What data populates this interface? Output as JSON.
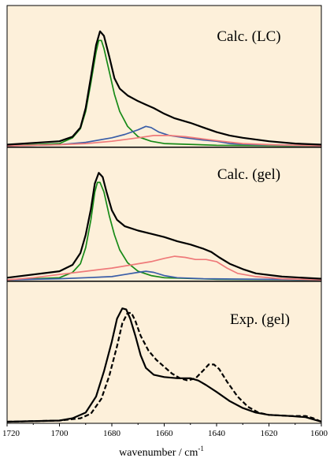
{
  "chart_data": {
    "type": "line",
    "x_axis": {
      "label": "wavenumber / cm",
      "label_superscript": "-1",
      "range": [
        1720,
        1600
      ],
      "ticks": [
        "1720",
        "1700",
        "1680",
        "1660",
        "1640",
        "1620",
        "1600"
      ]
    },
    "colors": {
      "background": "#fdf0da",
      "total": "#000000",
      "green": "#178a17",
      "blue": "#3a5ea8",
      "red": "#ef7a7a"
    },
    "panels": [
      {
        "title": "Calc. (LC)",
        "y_range": [
          0,
          1.06
        ],
        "series": [
          {
            "color_key": "total",
            "dashed": false,
            "points": [
              [
                1720,
                0.01
              ],
              [
                1700,
                0.04
              ],
              [
                1695,
                0.08
              ],
              [
                1692,
                0.16
              ],
              [
                1690,
                0.33
              ],
              [
                1688,
                0.6
              ],
              [
                1686,
                0.88
              ],
              [
                1684.5,
                1.0
              ],
              [
                1683,
                0.96
              ],
              [
                1681,
                0.78
              ],
              [
                1679,
                0.59
              ],
              [
                1677,
                0.5
              ],
              [
                1674,
                0.44
              ],
              [
                1670,
                0.39
              ],
              [
                1667,
                0.36
              ],
              [
                1664,
                0.33
              ],
              [
                1660,
                0.28
              ],
              [
                1656,
                0.24
              ],
              [
                1650,
                0.2
              ],
              [
                1645,
                0.16
              ],
              [
                1640,
                0.12
              ],
              [
                1635,
                0.09
              ],
              [
                1630,
                0.07
              ],
              [
                1620,
                0.04
              ],
              [
                1610,
                0.02
              ],
              [
                1600,
                0.01
              ]
            ]
          },
          {
            "color_key": "green",
            "dashed": false,
            "points": [
              [
                1720,
                0.0
              ],
              [
                1700,
                0.02
              ],
              [
                1695,
                0.07
              ],
              [
                1692,
                0.15
              ],
              [
                1690,
                0.3
              ],
              [
                1688,
                0.55
              ],
              [
                1686,
                0.82
              ],
              [
                1685,
                0.92
              ],
              [
                1684,
                0.92
              ],
              [
                1683,
                0.85
              ],
              [
                1681,
                0.65
              ],
              [
                1679,
                0.45
              ],
              [
                1677,
                0.3
              ],
              [
                1674,
                0.17
              ],
              [
                1670,
                0.08
              ],
              [
                1665,
                0.04
              ],
              [
                1660,
                0.02
              ],
              [
                1640,
                0.005
              ],
              [
                1600,
                0.0
              ]
            ]
          },
          {
            "color_key": "blue",
            "dashed": false,
            "points": [
              [
                1720,
                0.0
              ],
              [
                1700,
                0.01
              ],
              [
                1690,
                0.03
              ],
              [
                1680,
                0.07
              ],
              [
                1675,
                0.1
              ],
              [
                1670,
                0.14
              ],
              [
                1667,
                0.17
              ],
              [
                1665,
                0.16
              ],
              [
                1662,
                0.12
              ],
              [
                1658,
                0.09
              ],
              [
                1652,
                0.07
              ],
              [
                1645,
                0.05
              ],
              [
                1640,
                0.04
              ],
              [
                1635,
                0.02
              ],
              [
                1625,
                0.01
              ],
              [
                1600,
                0.0
              ]
            ]
          },
          {
            "color_key": "red",
            "dashed": false,
            "points": [
              [
                1720,
                0.0
              ],
              [
                1700,
                0.01
              ],
              [
                1690,
                0.02
              ],
              [
                1680,
                0.04
              ],
              [
                1670,
                0.07
              ],
              [
                1664,
                0.09
              ],
              [
                1658,
                0.09
              ],
              [
                1652,
                0.08
              ],
              [
                1645,
                0.06
              ],
              [
                1638,
                0.04
              ],
              [
                1630,
                0.02
              ],
              [
                1620,
                0.01
              ],
              [
                1600,
                0.0
              ]
            ]
          }
        ]
      },
      {
        "title": "Calc. (gel)",
        "y_range": [
          0,
          1.06
        ],
        "series": [
          {
            "color_key": "total",
            "dashed": false,
            "points": [
              [
                1720,
                0.02
              ],
              [
                1700,
                0.08
              ],
              [
                1695,
                0.14
              ],
              [
                1692,
                0.25
              ],
              [
                1690,
                0.42
              ],
              [
                1688,
                0.66
              ],
              [
                1686.5,
                0.9
              ],
              [
                1685,
                1.0
              ],
              [
                1683.5,
                0.96
              ],
              [
                1682,
                0.82
              ],
              [
                1680,
                0.65
              ],
              [
                1678,
                0.56
              ],
              [
                1675,
                0.5
              ],
              [
                1670,
                0.46
              ],
              [
                1665,
                0.43
              ],
              [
                1660,
                0.4
              ],
              [
                1655,
                0.36
              ],
              [
                1650,
                0.33
              ],
              [
                1645,
                0.29
              ],
              [
                1642,
                0.26
              ],
              [
                1639,
                0.21
              ],
              [
                1635,
                0.15
              ],
              [
                1630,
                0.1
              ],
              [
                1625,
                0.06
              ],
              [
                1615,
                0.03
              ],
              [
                1600,
                0.01
              ]
            ]
          },
          {
            "color_key": "green",
            "dashed": false,
            "points": [
              [
                1720,
                0.0
              ],
              [
                1700,
                0.02
              ],
              [
                1695,
                0.07
              ],
              [
                1692,
                0.15
              ],
              [
                1690,
                0.3
              ],
              [
                1688,
                0.56
              ],
              [
                1686.5,
                0.82
              ],
              [
                1685.5,
                0.91
              ],
              [
                1684.5,
                0.91
              ],
              [
                1683,
                0.82
              ],
              [
                1681,
                0.6
              ],
              [
                1679,
                0.42
              ],
              [
                1677,
                0.28
              ],
              [
                1674,
                0.16
              ],
              [
                1670,
                0.08
              ],
              [
                1665,
                0.04
              ],
              [
                1660,
                0.02
              ],
              [
                1640,
                0.005
              ],
              [
                1600,
                0.0
              ]
            ]
          },
          {
            "color_key": "blue",
            "dashed": false,
            "points": [
              [
                1720,
                0.0
              ],
              [
                1700,
                0.01
              ],
              [
                1690,
                0.02
              ],
              [
                1680,
                0.03
              ],
              [
                1675,
                0.05
              ],
              [
                1670,
                0.07
              ],
              [
                1667,
                0.08
              ],
              [
                1664,
                0.07
              ],
              [
                1660,
                0.04
              ],
              [
                1655,
                0.02
              ],
              [
                1645,
                0.01
              ],
              [
                1600,
                0.0
              ]
            ]
          },
          {
            "color_key": "red",
            "dashed": false,
            "points": [
              [
                1720,
                0.0
              ],
              [
                1710,
                0.02
              ],
              [
                1700,
                0.05
              ],
              [
                1690,
                0.08
              ],
              [
                1680,
                0.11
              ],
              [
                1670,
                0.15
              ],
              [
                1665,
                0.17
              ],
              [
                1660,
                0.2
              ],
              [
                1656,
                0.22
              ],
              [
                1652,
                0.21
              ],
              [
                1648,
                0.19
              ],
              [
                1644,
                0.19
              ],
              [
                1640,
                0.17
              ],
              [
                1636,
                0.11
              ],
              [
                1632,
                0.06
              ],
              [
                1625,
                0.03
              ],
              [
                1615,
                0.01
              ],
              [
                1600,
                0.0
              ]
            ]
          }
        ]
      },
      {
        "title": "Exp. (gel)",
        "y_range": [
          0,
          1.06
        ],
        "series": [
          {
            "color_key": "total",
            "dashed": false,
            "points": [
              [
                1720,
                0.0
              ],
              [
                1700,
                0.01
              ],
              [
                1695,
                0.03
              ],
              [
                1690,
                0.08
              ],
              [
                1686,
                0.22
              ],
              [
                1683,
                0.44
              ],
              [
                1680,
                0.7
              ],
              [
                1678,
                0.9
              ],
              [
                1676,
                0.99
              ],
              [
                1674.5,
                0.98
              ],
              [
                1673,
                0.9
              ],
              [
                1671,
                0.75
              ],
              [
                1669,
                0.58
              ],
              [
                1667,
                0.47
              ],
              [
                1664,
                0.41
              ],
              [
                1660,
                0.39
              ],
              [
                1655,
                0.38
              ],
              [
                1650,
                0.38
              ],
              [
                1647,
                0.36
              ],
              [
                1644,
                0.32
              ],
              [
                1640,
                0.26
              ],
              [
                1635,
                0.18
              ],
              [
                1630,
                0.12
              ],
              [
                1625,
                0.08
              ],
              [
                1620,
                0.06
              ],
              [
                1612,
                0.05
              ],
              [
                1606,
                0.04
              ],
              [
                1603,
                0.02
              ],
              [
                1600,
                0.0
              ]
            ]
          },
          {
            "color_key": "total",
            "dashed": true,
            "points": [
              [
                1720,
                0.0
              ],
              [
                1700,
                0.01
              ],
              [
                1692,
                0.03
              ],
              [
                1688,
                0.07
              ],
              [
                1684,
                0.2
              ],
              [
                1681,
                0.4
              ],
              [
                1678,
                0.66
              ],
              [
                1676,
                0.86
              ],
              [
                1674,
                0.95
              ],
              [
                1672.5,
                0.95
              ],
              [
                1671,
                0.88
              ],
              [
                1669,
                0.75
              ],
              [
                1666,
                0.62
              ],
              [
                1663,
                0.54
              ],
              [
                1660,
                0.48
              ],
              [
                1657,
                0.42
              ],
              [
                1654,
                0.38
              ],
              [
                1651,
                0.36
              ],
              [
                1648,
                0.38
              ],
              [
                1645,
                0.45
              ],
              [
                1643,
                0.5
              ],
              [
                1641,
                0.5
              ],
              [
                1639,
                0.46
              ],
              [
                1636,
                0.35
              ],
              [
                1632,
                0.22
              ],
              [
                1628,
                0.13
              ],
              [
                1624,
                0.08
              ],
              [
                1620,
                0.06
              ],
              [
                1612,
                0.05
              ],
              [
                1606,
                0.05
              ],
              [
                1603,
                0.03
              ],
              [
                1600,
                0.0
              ]
            ]
          }
        ]
      }
    ]
  }
}
